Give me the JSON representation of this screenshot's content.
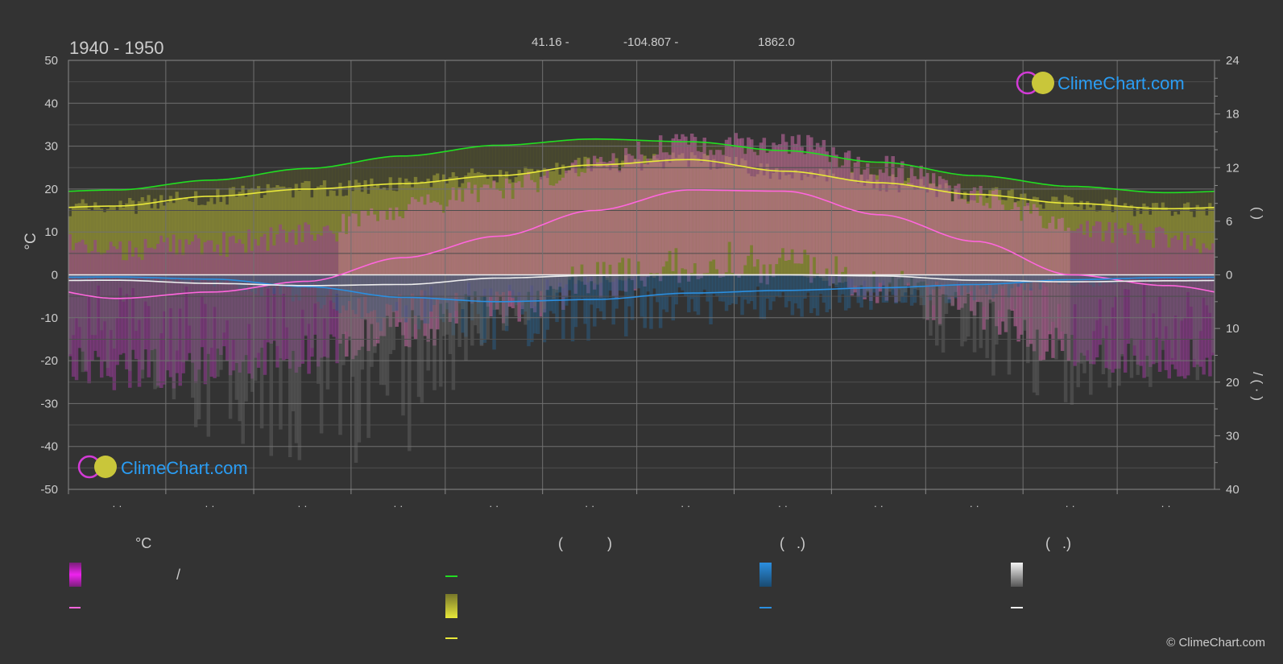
{
  "header": {
    "period": "1940 - 1950",
    "lat": "41.16 -",
    "lon": "-104.807 -",
    "elev": "1862.0"
  },
  "branding": {
    "logo_text": "ClimeChart.com",
    "copyright": "© ClimeChart.com"
  },
  "axes": {
    "left_unit": "°C",
    "left_ticks": [
      50,
      40,
      30,
      20,
      10,
      0,
      -10,
      -20,
      -30,
      -40,
      -50
    ],
    "right_upper_ticks": [
      "24",
      "18",
      "12",
      "6",
      "0"
    ],
    "right_lower_ticks": [
      "10",
      "20",
      "30",
      "40"
    ],
    "right_upper_label": "(         )",
    "right_lower_label": "/    (  ·  )",
    "month_labels": [
      "· ·",
      "· ·",
      "· ·",
      "· ·",
      "· ·",
      "· ·",
      "· ·",
      "· ·",
      "· ·",
      "· ·",
      "· ·",
      "· ·"
    ]
  },
  "legend": {
    "temperature_header": "°C",
    "sun_header": "(           )",
    "rain_header": "(   .)",
    "snow_header": "(   .)",
    "range_separator": "/"
  },
  "colors": {
    "background": "#333333",
    "grid": "#5a5a5a",
    "daylight": "#22dd22",
    "sunshine": "#e8e83a",
    "temp_avg": "#ff66dd",
    "temp_range": "#ee22ee",
    "rain": "#2b8fe0",
    "snow": "#eeeeee",
    "logo_blue": "#2a9df4"
  },
  "chart_data": {
    "type": "line",
    "x_months": [
      "1",
      "2",
      "3",
      "4",
      "5",
      "6",
      "7",
      "8",
      "9",
      "10",
      "11",
      "12"
    ],
    "ylim_left": [
      -50,
      50
    ],
    "ylim_right_upper": [
      0,
      24
    ],
    "ylim_right_lower": [
      0,
      40
    ],
    "grid": true,
    "series": [
      {
        "name": "",
        "key": "daylight",
        "axis": "hours",
        "values": [
          9.5,
          10.6,
          11.9,
          13.3,
          14.5,
          15.2,
          14.9,
          13.9,
          12.6,
          11.1,
          9.9,
          9.2
        ]
      },
      {
        "name": "",
        "key": "sunshine",
        "axis": "hours",
        "values": [
          7.7,
          8.8,
          9.6,
          10.2,
          11.1,
          12.3,
          12.9,
          11.6,
          10.3,
          9.0,
          8.0,
          7.4
        ]
      },
      {
        "name": "",
        "key": "temp_avg",
        "axis": "celsius",
        "values": [
          -5.5,
          -4.0,
          -1.5,
          4.0,
          9.0,
          15.0,
          19.8,
          19.5,
          14.0,
          7.8,
          0.0,
          -2.5
        ]
      },
      {
        "name": "",
        "key": "rain",
        "axis": "mm",
        "values": [
          0.4,
          0.8,
          2.2,
          4.2,
          5.0,
          4.6,
          3.4,
          2.9,
          2.4,
          1.8,
          0.9,
          0.5
        ]
      },
      {
        "name": "",
        "key": "snow",
        "axis": "mm",
        "values": [
          1.0,
          1.6,
          2.0,
          1.8,
          0.6,
          0.1,
          0.0,
          0.0,
          0.2,
          1.0,
          1.3,
          1.1
        ]
      }
    ]
  }
}
